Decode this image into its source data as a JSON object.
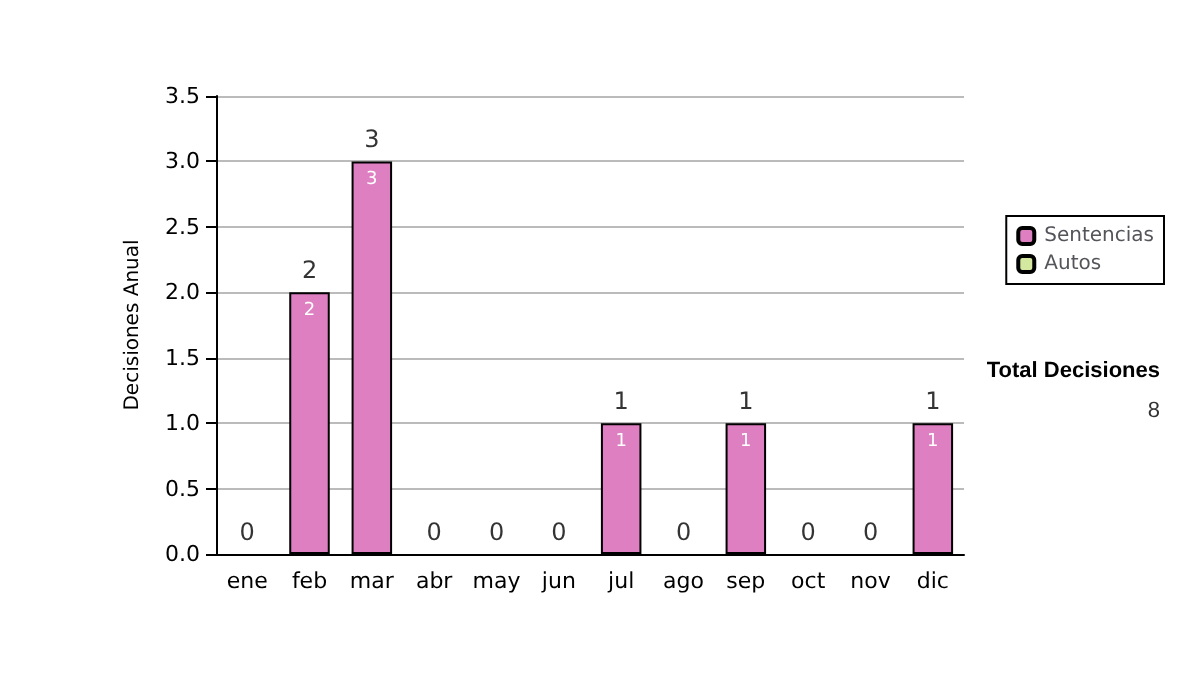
{
  "chart_data": {
    "type": "bar",
    "stacked": true,
    "ylabel": "Decisiones Anual",
    "categories": [
      "ene",
      "feb",
      "mar",
      "abr",
      "may",
      "jun",
      "jul",
      "ago",
      "sep",
      "oct",
      "nov",
      "dic"
    ],
    "series": [
      {
        "name": "Sentencias",
        "color": "#dd7fc0",
        "values": [
          0,
          2,
          3,
          0,
          0,
          0,
          1,
          0,
          1,
          0,
          0,
          1
        ],
        "value_labels": [
          null,
          "2",
          "3",
          null,
          null,
          null,
          "1",
          null,
          "1",
          null,
          null,
          "1"
        ]
      },
      {
        "name": "Autos",
        "color": "#d4e8a0",
        "values": [
          0,
          0,
          0,
          0,
          0,
          0,
          0,
          0,
          0,
          0,
          0,
          0
        ]
      }
    ],
    "totals": [
      "0",
      "2",
      "3",
      "0",
      "0",
      "0",
      "1",
      "0",
      "1",
      "0",
      "0",
      "1"
    ],
    "ylim": [
      0,
      3.5
    ],
    "yticks": [
      {
        "value": 0,
        "label": "0.0"
      },
      {
        "value": 0.5,
        "label": "0.5"
      },
      {
        "value": 1,
        "label": "1.0"
      },
      {
        "value": 1.5,
        "label": "1.5"
      },
      {
        "value": 2,
        "label": "2.0"
      },
      {
        "value": 2.5,
        "label": "2.5"
      },
      {
        "value": 3,
        "label": "3.0"
      },
      {
        "value": 3.5,
        "label": "3.5"
      }
    ],
    "grid": "y",
    "legend": "right",
    "annotations": [
      "Total Decisiones",
      "8"
    ]
  }
}
